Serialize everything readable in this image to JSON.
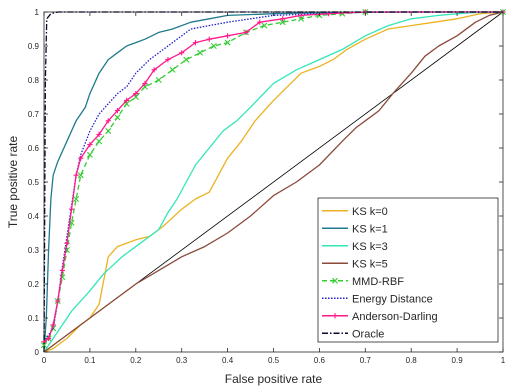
{
  "chart_data": {
    "type": "line",
    "title": "",
    "xlabel": "False positive rate",
    "ylabel": "True positive rate",
    "xlim": [
      0,
      1
    ],
    "ylim": [
      0,
      1
    ],
    "xticks": [
      "0",
      "0.1",
      "0.2",
      "0.3",
      "0.4",
      "0.5",
      "0.6",
      "0.7",
      "0.8",
      "0.9",
      "1"
    ],
    "yticks": [
      "0",
      "0.1",
      "0.2",
      "0.3",
      "0.4",
      "0.5",
      "0.6",
      "0.7",
      "0.8",
      "0.9",
      "1"
    ],
    "grid": false,
    "legend_position": "bottom-right",
    "diagonal_reference": true,
    "series": [
      {
        "name": "KS k=0",
        "color": "#EDB120",
        "style": "solid",
        "marker": "none",
        "points": [
          [
            0,
            0
          ],
          [
            0.02,
            0.01
          ],
          [
            0.05,
            0.04
          ],
          [
            0.08,
            0.08
          ],
          [
            0.1,
            0.1
          ],
          [
            0.12,
            0.14
          ],
          [
            0.14,
            0.28
          ],
          [
            0.16,
            0.31
          ],
          [
            0.2,
            0.33
          ],
          [
            0.23,
            0.34
          ],
          [
            0.26,
            0.37
          ],
          [
            0.3,
            0.42
          ],
          [
            0.33,
            0.45
          ],
          [
            0.36,
            0.47
          ],
          [
            0.4,
            0.57
          ],
          [
            0.43,
            0.62
          ],
          [
            0.46,
            0.68
          ],
          [
            0.5,
            0.74
          ],
          [
            0.53,
            0.78
          ],
          [
            0.56,
            0.82
          ],
          [
            0.6,
            0.84
          ],
          [
            0.63,
            0.86
          ],
          [
            0.66,
            0.89
          ],
          [
            0.7,
            0.92
          ],
          [
            0.75,
            0.95
          ],
          [
            0.8,
            0.96
          ],
          [
            0.85,
            0.97
          ],
          [
            0.9,
            0.98
          ],
          [
            0.95,
            0.995
          ],
          [
            1,
            1
          ]
        ]
      },
      {
        "name": "KS k=1",
        "color": "#1F7A8C",
        "style": "solid",
        "marker": "none",
        "points": [
          [
            0,
            0
          ],
          [
            0.005,
            0.1
          ],
          [
            0.01,
            0.3
          ],
          [
            0.015,
            0.45
          ],
          [
            0.02,
            0.52
          ],
          [
            0.03,
            0.56
          ],
          [
            0.05,
            0.62
          ],
          [
            0.07,
            0.68
          ],
          [
            0.09,
            0.72
          ],
          [
            0.1,
            0.76
          ],
          [
            0.12,
            0.82
          ],
          [
            0.14,
            0.86
          ],
          [
            0.16,
            0.88
          ],
          [
            0.18,
            0.9
          ],
          [
            0.2,
            0.91
          ],
          [
            0.22,
            0.92
          ],
          [
            0.25,
            0.94
          ],
          [
            0.28,
            0.95
          ],
          [
            0.32,
            0.97
          ],
          [
            0.36,
            0.98
          ],
          [
            0.4,
            0.99
          ],
          [
            0.5,
            0.995
          ],
          [
            0.6,
            0.998
          ],
          [
            0.8,
            1
          ],
          [
            1,
            1
          ]
        ]
      },
      {
        "name": "KS k=3",
        "color": "#33E6B8",
        "style": "solid",
        "marker": "none",
        "points": [
          [
            0,
            0
          ],
          [
            0.03,
            0.06
          ],
          [
            0.06,
            0.12
          ],
          [
            0.1,
            0.18
          ],
          [
            0.13,
            0.23
          ],
          [
            0.17,
            0.28
          ],
          [
            0.21,
            0.32
          ],
          [
            0.25,
            0.36
          ],
          [
            0.27,
            0.41
          ],
          [
            0.29,
            0.45
          ],
          [
            0.31,
            0.5
          ],
          [
            0.33,
            0.55
          ],
          [
            0.36,
            0.6
          ],
          [
            0.39,
            0.65
          ],
          [
            0.42,
            0.68
          ],
          [
            0.45,
            0.72
          ],
          [
            0.5,
            0.79
          ],
          [
            0.55,
            0.83
          ],
          [
            0.6,
            0.86
          ],
          [
            0.65,
            0.89
          ],
          [
            0.7,
            0.93
          ],
          [
            0.75,
            0.96
          ],
          [
            0.8,
            0.98
          ],
          [
            0.86,
            0.99
          ],
          [
            0.93,
            0.998
          ],
          [
            1,
            1
          ]
        ]
      },
      {
        "name": "KS k=5",
        "color": "#8B4A3A",
        "style": "solid",
        "marker": "none",
        "points": [
          [
            0,
            0
          ],
          [
            0.05,
            0.05
          ],
          [
            0.1,
            0.1
          ],
          [
            0.15,
            0.15
          ],
          [
            0.2,
            0.2
          ],
          [
            0.25,
            0.24
          ],
          [
            0.3,
            0.28
          ],
          [
            0.35,
            0.31
          ],
          [
            0.4,
            0.35
          ],
          [
            0.45,
            0.4
          ],
          [
            0.5,
            0.46
          ],
          [
            0.55,
            0.5
          ],
          [
            0.6,
            0.55
          ],
          [
            0.65,
            0.62
          ],
          [
            0.68,
            0.66
          ],
          [
            0.7,
            0.68
          ],
          [
            0.73,
            0.71
          ],
          [
            0.76,
            0.76
          ],
          [
            0.8,
            0.82
          ],
          [
            0.83,
            0.87
          ],
          [
            0.86,
            0.9
          ],
          [
            0.9,
            0.93
          ],
          [
            0.94,
            0.97
          ],
          [
            0.97,
            0.99
          ],
          [
            1,
            1
          ]
        ]
      },
      {
        "name": "MMD-RBF",
        "color": "#33CC33",
        "style": "dashed",
        "marker": "x",
        "points": [
          [
            0,
            0.02
          ],
          [
            0.01,
            0.04
          ],
          [
            0.02,
            0.07
          ],
          [
            0.03,
            0.15
          ],
          [
            0.04,
            0.22
          ],
          [
            0.05,
            0.3
          ],
          [
            0.06,
            0.38
          ],
          [
            0.07,
            0.45
          ],
          [
            0.08,
            0.52
          ],
          [
            0.1,
            0.58
          ],
          [
            0.12,
            0.62
          ],
          [
            0.14,
            0.65
          ],
          [
            0.16,
            0.69
          ],
          [
            0.18,
            0.73
          ],
          [
            0.2,
            0.75
          ],
          [
            0.22,
            0.78
          ],
          [
            0.25,
            0.8
          ],
          [
            0.28,
            0.83
          ],
          [
            0.31,
            0.86
          ],
          [
            0.34,
            0.88
          ],
          [
            0.37,
            0.9
          ],
          [
            0.4,
            0.91
          ],
          [
            0.44,
            0.94
          ],
          [
            0.48,
            0.96
          ],
          [
            0.52,
            0.97
          ],
          [
            0.56,
            0.98
          ],
          [
            0.6,
            0.99
          ],
          [
            0.65,
            0.995
          ],
          [
            0.7,
            1
          ],
          [
            1,
            1
          ]
        ]
      },
      {
        "name": "Energy Distance",
        "color": "#1F1FCC",
        "style": "dotted",
        "marker": "none",
        "points": [
          [
            0,
            0.03
          ],
          [
            0.02,
            0.07
          ],
          [
            0.03,
            0.15
          ],
          [
            0.04,
            0.25
          ],
          [
            0.05,
            0.34
          ],
          [
            0.06,
            0.43
          ],
          [
            0.07,
            0.52
          ],
          [
            0.08,
            0.58
          ],
          [
            0.1,
            0.65
          ],
          [
            0.12,
            0.7
          ],
          [
            0.14,
            0.73
          ],
          [
            0.16,
            0.76
          ],
          [
            0.18,
            0.78
          ],
          [
            0.2,
            0.82
          ],
          [
            0.23,
            0.86
          ],
          [
            0.26,
            0.89
          ],
          [
            0.29,
            0.92
          ],
          [
            0.32,
            0.95
          ],
          [
            0.36,
            0.96
          ],
          [
            0.4,
            0.97
          ],
          [
            0.45,
            0.98
          ],
          [
            0.5,
            0.99
          ],
          [
            0.6,
            0.995
          ],
          [
            0.7,
            1
          ],
          [
            1,
            1
          ]
        ]
      },
      {
        "name": "Anderson-Darling",
        "color": "#FF1A8C",
        "style": "solid",
        "marker": "+",
        "points": [
          [
            0,
            0.03
          ],
          [
            0.01,
            0.04
          ],
          [
            0.02,
            0.08
          ],
          [
            0.03,
            0.15
          ],
          [
            0.04,
            0.24
          ],
          [
            0.05,
            0.32
          ],
          [
            0.06,
            0.42
          ],
          [
            0.07,
            0.52
          ],
          [
            0.08,
            0.57
          ],
          [
            0.1,
            0.61
          ],
          [
            0.12,
            0.64
          ],
          [
            0.14,
            0.68
          ],
          [
            0.16,
            0.71
          ],
          [
            0.18,
            0.74
          ],
          [
            0.2,
            0.76
          ],
          [
            0.22,
            0.79
          ],
          [
            0.24,
            0.83
          ],
          [
            0.27,
            0.86
          ],
          [
            0.3,
            0.88
          ],
          [
            0.33,
            0.91
          ],
          [
            0.36,
            0.92
          ],
          [
            0.4,
            0.93
          ],
          [
            0.44,
            0.94
          ],
          [
            0.47,
            0.97
          ],
          [
            0.52,
            0.98
          ],
          [
            0.56,
            0.99
          ],
          [
            0.62,
            0.995
          ],
          [
            0.7,
            1
          ],
          [
            1,
            1
          ]
        ]
      },
      {
        "name": "Oracle",
        "color": "#0A0A2A",
        "style": "dashdot",
        "marker": "none",
        "points": [
          [
            0,
            0
          ],
          [
            0.003,
            0.8
          ],
          [
            0.006,
            0.98
          ],
          [
            0.015,
            0.995
          ],
          [
            0.03,
            1
          ],
          [
            1,
            1
          ]
        ]
      }
    ]
  }
}
